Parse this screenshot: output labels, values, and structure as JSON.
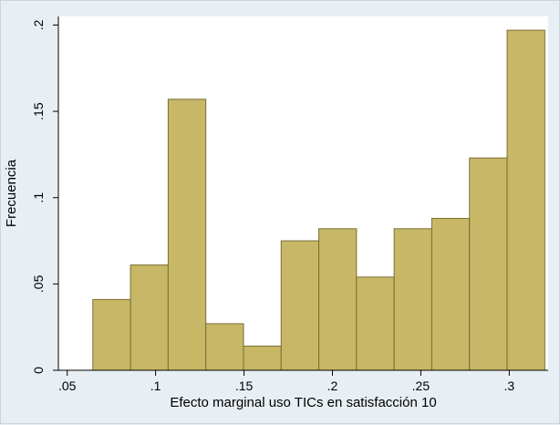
{
  "chart_data": {
    "type": "bar",
    "title": "",
    "xlabel": "Efecto marginal uso TICs en satisfacción 10",
    "ylabel": "Frecuencia",
    "xlim": [
      0.045,
      0.322
    ],
    "ylim": [
      0,
      0.205
    ],
    "x_ticks": [
      {
        "value": 0.05,
        "label": ".05"
      },
      {
        "value": 0.1,
        "label": ".1"
      },
      {
        "value": 0.15,
        "label": ".15"
      },
      {
        "value": 0.2,
        "label": ".2"
      },
      {
        "value": 0.25,
        "label": ".25"
      },
      {
        "value": 0.3,
        "label": ".3"
      }
    ],
    "y_ticks": [
      {
        "value": 0,
        "label": "0"
      },
      {
        "value": 0.05,
        "label": ".05"
      },
      {
        "value": 0.1,
        "label": ".1"
      },
      {
        "value": 0.15,
        "label": ".15"
      },
      {
        "value": 0.2,
        "label": ".2"
      }
    ],
    "bins": [
      {
        "x0": 0.0645,
        "x1": 0.0858,
        "value": 0.041
      },
      {
        "x0": 0.0858,
        "x1": 0.1071,
        "value": 0.061
      },
      {
        "x0": 0.1071,
        "x1": 0.1284,
        "value": 0.157
      },
      {
        "x0": 0.1284,
        "x1": 0.1497,
        "value": 0.027
      },
      {
        "x0": 0.1497,
        "x1": 0.171,
        "value": 0.014
      },
      {
        "x0": 0.171,
        "x1": 0.1923,
        "value": 0.075
      },
      {
        "x0": 0.1923,
        "x1": 0.2136,
        "value": 0.082
      },
      {
        "x0": 0.2136,
        "x1": 0.2349,
        "value": 0.054
      },
      {
        "x0": 0.2349,
        "x1": 0.2562,
        "value": 0.082
      },
      {
        "x0": 0.2562,
        "x1": 0.2775,
        "value": 0.088
      },
      {
        "x0": 0.2775,
        "x1": 0.2988,
        "value": 0.123
      },
      {
        "x0": 0.2988,
        "x1": 0.3201,
        "value": 0.197
      }
    ],
    "grid": false,
    "legend": "none",
    "colors": {
      "bar_fill": "#c8b766",
      "bar_stroke": "#7a6e35",
      "plot_background": "#ffffff",
      "outer_background": "#e8eff4"
    }
  }
}
